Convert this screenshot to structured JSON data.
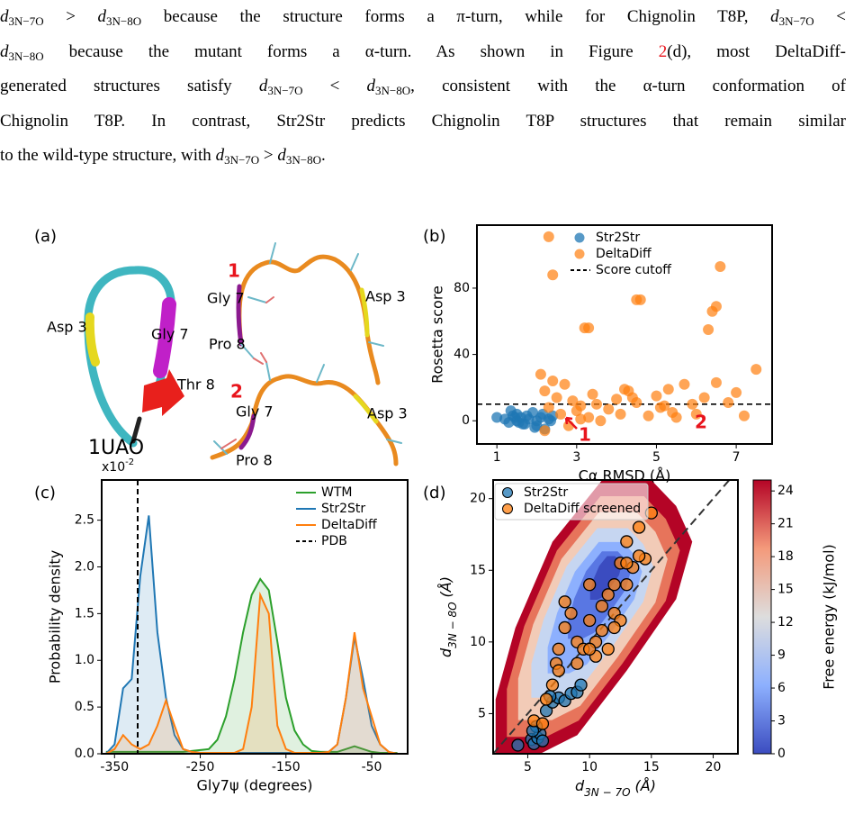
{
  "paragraph": [
    [
      {
        "sym": "d",
        "sub": "3N−7O"
      },
      " > ",
      {
        "sym": "d",
        "sub": "3N−8O"
      },
      " because the structure forms a π-turn, while for Chignolin T8P, ",
      {
        "sym": "d",
        "sub": "3N−7O"
      },
      " <"
    ],
    [
      {
        "sym": "d",
        "sub": "3N−8O"
      },
      " because the mutant forms a α-turn.  As shown in Figure ",
      {
        "ref": "2"
      },
      "(d), most DeltaDiff-"
    ],
    [
      "generated structures satisfy ",
      {
        "sym": "d",
        "sub": "3N−7O"
      },
      " < ",
      {
        "sym": "d",
        "sub": "3N−8O"
      },
      ", consistent with the α-turn conformation of"
    ],
    [
      "Chignolin T8P. In contrast, Str2Str predicts Chignolin T8P structures that remain similar"
    ],
    [
      "to the wild-type structure, with ",
      {
        "sym": "d",
        "sub": "3N−7O"
      },
      " > ",
      {
        "sym": "d",
        "sub": "3N−8O"
      },
      "."
    ]
  ],
  "panel_a": {
    "panel_label": "(a)",
    "wild_type": {
      "name": "1UAO",
      "labels": [
        "Asp 3",
        "Gly 7",
        "Thr 8"
      ]
    },
    "model_1": {
      "index": "1",
      "labels": [
        "Gly 7",
        "Asp 3",
        "Pro 8"
      ]
    },
    "model_2": {
      "index": "2",
      "labels": [
        "Gly 7",
        "Asp 3",
        "Pro 8"
      ]
    }
  },
  "chart_data": [
    {
      "type": "scatter",
      "panel_label": "(b)",
      "xlabel": "Cα RMSD  (Å)",
      "ylabel": "Rosetta score",
      "xlim": [
        0.5,
        7.9
      ],
      "xticks": [
        1,
        3,
        5,
        7
      ],
      "ylim": [
        -14,
        118
      ],
      "yticks": [
        0,
        40,
        80
      ],
      "legend": "upper center",
      "legend_frame": false,
      "series": [
        {
          "name": "Str2Str",
          "color": "#1f77b4",
          "alpha": 0.75,
          "x": [
            1.0,
            1.2,
            1.3,
            1.4,
            1.5,
            1.5,
            1.6,
            1.7,
            1.8,
            1.9,
            2.0,
            2.0,
            2.1,
            2.2,
            2.3,
            2.4,
            1.35,
            1.55,
            1.75,
            1.95,
            2.15,
            2.35,
            1.45,
            1.65
          ],
          "y": [
            2,
            1,
            -1,
            3,
            4,
            0,
            2,
            -2,
            1,
            5,
            0,
            -3,
            2,
            -5,
            1,
            3,
            6,
            -1,
            3,
            -4,
            4,
            0,
            2,
            -2
          ]
        },
        {
          "name": "DeltaDiff",
          "color": "#ff7f0e",
          "alpha": 0.7,
          "x": [
            2.1,
            2.2,
            2.3,
            2.3,
            2.4,
            2.5,
            2.6,
            2.7,
            2.8,
            2.9,
            3.0,
            3.1,
            3.2,
            3.3,
            3.4,
            3.5,
            3.6,
            3.8,
            4.0,
            4.1,
            4.2,
            4.3,
            4.5,
            4.6,
            4.8,
            5.0,
            5.1,
            5.3,
            5.4,
            5.5,
            5.7,
            5.9,
            6.0,
            6.2,
            6.3,
            6.4,
            6.5,
            6.6,
            6.8,
            7.0,
            7.2,
            7.5,
            3.1,
            3.3,
            4.4,
            4.5,
            2.4,
            6.5,
            5.2,
            2.2
          ],
          "y": [
            28,
            18,
            8,
            111,
            24,
            14,
            4,
            22,
            -3,
            12,
            6,
            9,
            56,
            2,
            16,
            10,
            0,
            7,
            13,
            4,
            19,
            18,
            11,
            73,
            3,
            15,
            8,
            19,
            5,
            2,
            22,
            10,
            4,
            14,
            55,
            66,
            69,
            93,
            11,
            17,
            3,
            31,
            1,
            56,
            14,
            73,
            88,
            23,
            9,
            -6
          ]
        }
      ],
      "hlines": [
        {
          "name": "Score cutoff",
          "value": 10,
          "color": "#000000",
          "style": "dashed"
        }
      ],
      "annotations": [
        {
          "text": "1",
          "color": "#e8141c"
        },
        {
          "text": "2",
          "color": "#e8141c"
        }
      ]
    },
    {
      "type": "line",
      "panel_label": "(c)",
      "xlabel": "Gly7ψ  (degrees)",
      "ylabel": "Probability density",
      "y_offset_label": {
        "base": "x10",
        "exponent": "-2"
      },
      "xlim": [
        -365,
        -8
      ],
      "xticks": [
        -350,
        -250,
        -150,
        -50
      ],
      "ylim": [
        0,
        2.93
      ],
      "yticks": [
        {
          "value": 0,
          "label": "0.0"
        },
        {
          "value": 0.5,
          "label": "0.5"
        },
        {
          "value": 1,
          "label": "1.0"
        },
        {
          "value": 1.5,
          "label": "1.5"
        },
        {
          "value": 2,
          "label": "2.0"
        },
        {
          "value": 2.5,
          "label": "2.5"
        }
      ],
      "legend": "upper right",
      "legend_frame": false,
      "x": [
        -360,
        -350,
        -340,
        -330,
        -320,
        -310,
        -300,
        -290,
        -280,
        -270,
        -260,
        -250,
        -240,
        -230,
        -220,
        -210,
        -200,
        -190,
        -180,
        -170,
        -160,
        -150,
        -140,
        -130,
        -120,
        -110,
        -100,
        -90,
        -80,
        -70,
        -60,
        -50,
        -40,
        -30,
        -20
      ],
      "series": [
        {
          "name": "WTM",
          "color": "#2ca02c",
          "values": [
            0.02,
            0.02,
            0.02,
            0.02,
            0.02,
            0.02,
            0.02,
            0.02,
            0.02,
            0.02,
            0.03,
            0.04,
            0.05,
            0.15,
            0.4,
            0.8,
            1.3,
            1.7,
            1.87,
            1.75,
            1.2,
            0.6,
            0.25,
            0.1,
            0.03,
            0.02,
            0.02,
            0.02,
            0.05,
            0.08,
            0.05,
            0.02,
            0.01,
            0.01,
            0.01
          ]
        },
        {
          "name": "Str2Str",
          "color": "#1f77b4",
          "values": [
            0,
            0.1,
            0.7,
            0.8,
            1.9,
            2.55,
            1.3,
            0.6,
            0.2,
            0.05,
            0.02,
            0.01,
            0.01,
            0.01,
            0.01,
            0.01,
            0.01,
            0.01,
            0.01,
            0.01,
            0.01,
            0.01,
            0.01,
            0.01,
            0.01,
            0.01,
            0.02,
            0.1,
            0.6,
            1.25,
            0.8,
            0.3,
            0.1,
            0.02,
            0
          ]
        },
        {
          "name": "DeltaDiff",
          "color": "#ff7f0e",
          "values": [
            0,
            0.05,
            0.2,
            0.1,
            0.05,
            0.1,
            0.3,
            0.57,
            0.3,
            0.05,
            0.02,
            0.01,
            0.01,
            0.01,
            0.01,
            0.01,
            0.05,
            0.5,
            1.7,
            1.5,
            0.3,
            0.05,
            0.01,
            0.01,
            0.01,
            0.01,
            0.02,
            0.1,
            0.6,
            1.3,
            0.7,
            0.4,
            0.1,
            0.02,
            0
          ]
        }
      ],
      "vlines": [
        {
          "name": "PDB",
          "value": -323,
          "color": "#000000",
          "style": "dashed"
        }
      ]
    },
    {
      "type": "scatter",
      "panel_label": "(d)",
      "xlabel": {
        "symbol": "d",
        "subscript": "3N − 7O",
        "unit": "(Å)"
      },
      "ylabel": {
        "symbol": "d",
        "subscript": "3N − 8O",
        "unit": "(Å)"
      },
      "xlim": [
        2.2,
        22
      ],
      "xticks": [
        5,
        10,
        15,
        20
      ],
      "ylim": [
        2.2,
        21.3
      ],
      "yticks": [
        5,
        10,
        15,
        20
      ],
      "diagonal": true,
      "legend": "upper left",
      "legend_frame": true,
      "series": [
        {
          "name": "Str2Str",
          "color": "#1f77b4",
          "alpha": 0.75,
          "edgecolor": "#000000",
          "x": [
            4.2,
            5.3,
            5.5,
            5.8,
            6.0,
            6.2,
            5.7,
            6.5,
            7.0,
            7.5,
            8.0,
            8.5,
            9.0,
            9.3,
            6.8,
            5.4
          ],
          "y": [
            2.8,
            3.2,
            2.9,
            3.3,
            3.6,
            3.1,
            4.1,
            5.2,
            5.8,
            6.1,
            5.9,
            6.4,
            6.5,
            7.0,
            6.2,
            3.8
          ]
        },
        {
          "name": "DeltaDiff screened",
          "color": "#ff7f0e",
          "alpha": 0.75,
          "edgecolor": "#000000",
          "x": [
            5.5,
            6.2,
            6.5,
            7.0,
            7.3,
            7.5,
            8.0,
            8.5,
            9.0,
            9.5,
            10.0,
            10.5,
            11.0,
            11.0,
            11.5,
            12.0,
            12.5,
            12.0,
            12.5,
            13.0,
            13.0,
            13.5,
            14.0,
            14.5,
            15.0,
            10.0,
            10.5,
            9.0,
            8.0,
            11.5,
            13.0,
            14.0,
            12.0,
            7.5,
            10.0
          ],
          "y": [
            4.5,
            4.3,
            6.0,
            7.0,
            8.5,
            9.5,
            11.0,
            12.0,
            10.0,
            9.5,
            11.5,
            10.0,
            12.5,
            10.8,
            13.3,
            14.0,
            15.5,
            12.0,
            11.5,
            14.0,
            17.0,
            15.2,
            18.0,
            15.8,
            19.0,
            14.0,
            9.0,
            8.5,
            12.8,
            9.5,
            15.5,
            16.0,
            11.0,
            8.0,
            9.5
          ]
        }
      ],
      "colorbar": {
        "label": "Free energy (kJ/mol)",
        "colormap": "coolwarm",
        "lim": [
          0,
          25
        ],
        "ticks": [
          0,
          3,
          6,
          9,
          12,
          15,
          18,
          21,
          24
        ]
      }
    }
  ]
}
